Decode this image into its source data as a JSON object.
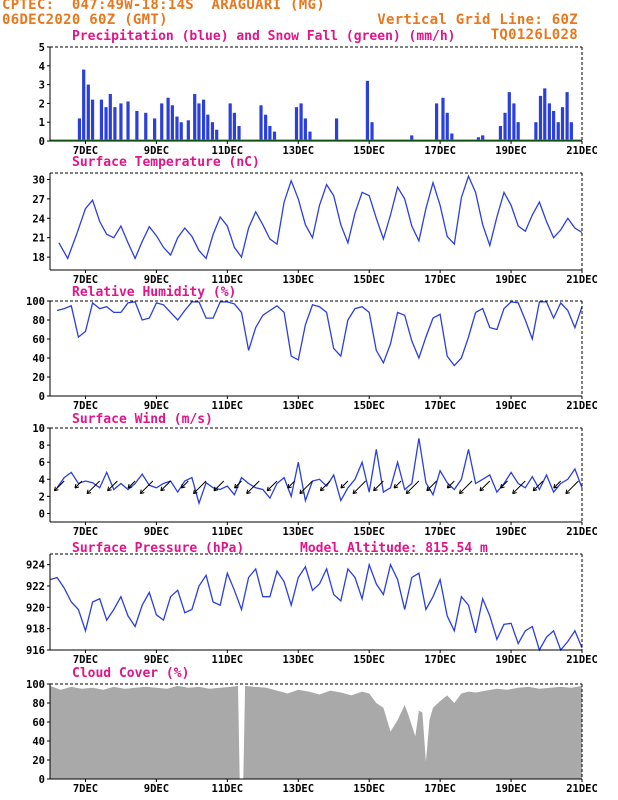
{
  "header": {
    "line1_left": "CPTEC:  047:49W-18:14S  ARAGUARI (MG)",
    "line2_left": "06DEC2020 60Z (GMT)",
    "line2_right": "Vertical Grid Line: 60Z",
    "line3_right": "TQ0126L028"
  },
  "colors": {
    "header": "#e8781e",
    "title": "#e0158a",
    "series": "#2b3fdb",
    "snow": "#1f9e1f",
    "wind_arrow": "#000000",
    "cloud": "#a9a9a9"
  },
  "x_tick_labels": [
    "7DEC",
    "9DEC",
    "11DEC",
    "13DEC",
    "15DEC",
    "17DEC",
    "19DEC",
    "21DEC"
  ],
  "chart_data": [
    {
      "id": "precip",
      "type": "bar",
      "title": "Precipitation (blue) and Snow Fall (green) (mm/h)",
      "ylim": [
        0,
        5
      ],
      "yticks": [
        0,
        1,
        2,
        3,
        4,
        5
      ],
      "series": [
        {
          "name": "Precipitation",
          "x": [
            6.83,
            6.95,
            7.08,
            7.2,
            7.45,
            7.58,
            7.7,
            7.83,
            8.0,
            8.2,
            8.45,
            8.7,
            8.95,
            9.15,
            9.33,
            9.45,
            9.58,
            9.7,
            9.9,
            10.08,
            10.2,
            10.33,
            10.45,
            10.58,
            10.7,
            11.08,
            11.2,
            11.33,
            11.95,
            12.08,
            12.2,
            12.33,
            12.95,
            13.08,
            13.2,
            13.33,
            14.08,
            14.95,
            15.08,
            16.2,
            16.9,
            17.08,
            17.2,
            17.33,
            18.08,
            18.2,
            18.7,
            18.83,
            18.95,
            19.08,
            19.2,
            19.7,
            19.83,
            19.95,
            20.08,
            20.2,
            20.33,
            20.45,
            20.58,
            20.7
          ],
          "values": [
            1.2,
            3.8,
            3.0,
            2.2,
            2.2,
            1.8,
            2.5,
            1.8,
            2.0,
            2.1,
            1.6,
            1.5,
            1.2,
            2.0,
            2.3,
            1.9,
            1.3,
            1.0,
            1.1,
            2.5,
            2.0,
            2.2,
            1.4,
            1.0,
            0.6,
            2.0,
            1.5,
            0.8,
            1.9,
            1.4,
            0.8,
            0.5,
            1.8,
            2.0,
            1.2,
            0.5,
            1.2,
            3.2,
            1.0,
            0.3,
            2.0,
            2.3,
            1.5,
            0.4,
            0.2,
            0.3,
            0.8,
            1.5,
            2.6,
            2.0,
            1.0,
            1.0,
            2.4,
            2.8,
            2.0,
            1.6,
            1.0,
            1.8,
            2.6,
            1.0
          ]
        },
        {
          "name": "Snow Fall",
          "x": [],
          "values": []
        }
      ]
    },
    {
      "id": "temp",
      "type": "line",
      "title": "Surface Temperature (nC)",
      "ylim": [
        16,
        31
      ],
      "yticks": [
        18,
        21,
        24,
        27,
        30
      ],
      "x": [
        6.25,
        6.5,
        6.75,
        7.0,
        7.2,
        7.4,
        7.6,
        7.8,
        8.0,
        8.2,
        8.4,
        8.6,
        8.8,
        9.0,
        9.2,
        9.4,
        9.6,
        9.8,
        10.0,
        10.2,
        10.4,
        10.6,
        10.8,
        11.0,
        11.2,
        11.4,
        11.6,
        11.8,
        12.0,
        12.2,
        12.4,
        12.6,
        12.8,
        13.0,
        13.2,
        13.4,
        13.6,
        13.8,
        14.0,
        14.2,
        14.4,
        14.6,
        14.8,
        15.0,
        15.2,
        15.4,
        15.6,
        15.8,
        16.0,
        16.2,
        16.4,
        16.6,
        16.8,
        17.0,
        17.2,
        17.4,
        17.6,
        17.8,
        18.0,
        18.2,
        18.4,
        18.6,
        18.8,
        19.0,
        19.2,
        19.4,
        19.6,
        19.8,
        20.0,
        20.2,
        20.4,
        20.6,
        20.8,
        21.0
      ],
      "values": [
        20.2,
        17.8,
        21.5,
        25.5,
        26.8,
        23.5,
        21.5,
        21.0,
        22.8,
        20.2,
        17.8,
        20.4,
        22.7,
        21.3,
        19.5,
        18.3,
        21.0,
        22.5,
        21.2,
        19.0,
        17.8,
        21.5,
        24.2,
        22.8,
        19.5,
        18.0,
        22.5,
        25.0,
        23.0,
        20.8,
        20.0,
        26.5,
        29.8,
        27.0,
        23.0,
        21.0,
        26.0,
        29.2,
        27.5,
        23.0,
        20.2,
        24.8,
        28.0,
        27.5,
        24.0,
        20.8,
        24.5,
        28.8,
        27.0,
        22.8,
        20.5,
        25.5,
        29.5,
        26.0,
        21.2,
        20.0,
        27.2,
        30.5,
        28.0,
        23.0,
        19.8,
        24.2,
        28.0,
        26.0,
        22.8,
        22.0,
        24.5,
        26.5,
        23.5,
        21.0,
        22.2,
        24.0,
        22.5,
        21.8
      ]
    },
    {
      "id": "rh",
      "type": "line",
      "title": "Relative Humidity (%)",
      "ylim": [
        0,
        100
      ],
      "yticks": [
        0,
        20,
        40,
        60,
        80,
        100
      ],
      "x": [
        6.2,
        6.4,
        6.6,
        6.8,
        7.0,
        7.2,
        7.4,
        7.6,
        7.8,
        8.0,
        8.2,
        8.4,
        8.6,
        8.8,
        9.0,
        9.2,
        9.4,
        9.6,
        9.8,
        10.0,
        10.2,
        10.4,
        10.6,
        10.8,
        11.0,
        11.2,
        11.4,
        11.6,
        11.8,
        12.0,
        12.2,
        12.4,
        12.6,
        12.8,
        13.0,
        13.2,
        13.4,
        13.6,
        13.8,
        14.0,
        14.2,
        14.4,
        14.6,
        14.8,
        15.0,
        15.2,
        15.4,
        15.6,
        15.8,
        16.0,
        16.2,
        16.4,
        16.6,
        16.8,
        17.0,
        17.2,
        17.4,
        17.6,
        17.8,
        18.0,
        18.2,
        18.4,
        18.6,
        18.8,
        19.0,
        19.2,
        19.4,
        19.6,
        19.8,
        20.0,
        20.2,
        20.4,
        20.6,
        20.8,
        21.0
      ],
      "values": [
        90,
        92,
        95,
        62,
        68,
        98,
        92,
        94,
        88,
        88,
        98,
        99,
        80,
        82,
        98,
        96,
        88,
        80,
        90,
        99,
        99,
        82,
        82,
        99,
        99,
        97,
        88,
        48,
        72,
        85,
        90,
        95,
        88,
        42,
        38,
        75,
        96,
        94,
        88,
        50,
        42,
        80,
        92,
        94,
        88,
        48,
        35,
        55,
        88,
        85,
        58,
        40,
        62,
        82,
        86,
        42,
        32,
        40,
        62,
        88,
        92,
        72,
        70,
        92,
        99,
        98,
        80,
        60,
        99,
        99,
        82,
        98,
        90,
        72,
        94
      ]
    },
    {
      "id": "wind",
      "type": "line",
      "title": "Surface Wind (m/s)",
      "ylim": [
        -1,
        10
      ],
      "yticks": [
        0,
        2,
        4,
        6,
        8,
        10
      ],
      "x": [
        6.2,
        6.4,
        6.6,
        6.8,
        7.0,
        7.2,
        7.4,
        7.6,
        7.8,
        8.0,
        8.2,
        8.4,
        8.6,
        8.8,
        9.0,
        9.2,
        9.4,
        9.6,
        9.8,
        10.0,
        10.2,
        10.4,
        10.6,
        10.8,
        11.0,
        11.2,
        11.4,
        11.6,
        11.8,
        12.0,
        12.2,
        12.4,
        12.6,
        12.8,
        13.0,
        13.2,
        13.4,
        13.6,
        13.8,
        14.0,
        14.2,
        14.4,
        14.6,
        14.8,
        15.0,
        15.2,
        15.4,
        15.6,
        15.8,
        16.0,
        16.2,
        16.4,
        16.6,
        16.8,
        17.0,
        17.2,
        17.4,
        17.6,
        17.8,
        18.0,
        18.2,
        18.4,
        18.6,
        18.8,
        19.0,
        19.2,
        19.4,
        19.6,
        19.8,
        20.0,
        20.2,
        20.4,
        20.6,
        20.8,
        21.0
      ],
      "values": [
        3.0,
        4.2,
        4.8,
        3.5,
        3.8,
        3.6,
        3.0,
        4.8,
        2.8,
        3.5,
        2.8,
        3.5,
        4.6,
        3.3,
        3.0,
        3.5,
        3.8,
        2.5,
        3.8,
        4.2,
        1.2,
        3.6,
        3.0,
        2.8,
        3.2,
        2.2,
        4.2,
        3.5,
        3.0,
        2.8,
        1.8,
        3.5,
        4.2,
        2.0,
        6.0,
        1.5,
        3.8,
        4.0,
        3.2,
        4.5,
        1.5,
        3.0,
        4.0,
        6.0,
        2.5,
        7.5,
        2.5,
        3.0,
        6.0,
        2.8,
        3.5,
        8.8,
        3.6,
        2.2,
        5.0,
        3.6,
        2.8,
        4.0,
        7.5,
        3.5,
        4.0,
        4.5,
        2.5,
        3.5,
        4.8,
        3.5,
        3.0,
        4.3,
        2.8,
        4.5,
        2.5,
        3.5,
        4.0,
        5.2,
        3.0
      ]
    },
    {
      "id": "pres",
      "type": "line",
      "title": "Surface Pressure (hPa)",
      "subtitle": "Model Altitude: 815.54 m",
      "ylim": [
        916,
        925
      ],
      "yticks": [
        916,
        918,
        920,
        922,
        924
      ],
      "x": [
        6.0,
        6.2,
        6.4,
        6.6,
        6.8,
        7.0,
        7.2,
        7.4,
        7.6,
        7.8,
        8.0,
        8.2,
        8.4,
        8.6,
        8.8,
        9.0,
        9.2,
        9.4,
        9.6,
        9.8,
        10.0,
        10.2,
        10.4,
        10.6,
        10.8,
        11.0,
        11.2,
        11.4,
        11.6,
        11.8,
        12.0,
        12.2,
        12.4,
        12.6,
        12.8,
        13.0,
        13.2,
        13.4,
        13.6,
        13.8,
        14.0,
        14.2,
        14.4,
        14.6,
        14.8,
        15.0,
        15.2,
        15.4,
        15.6,
        15.8,
        16.0,
        16.2,
        16.4,
        16.6,
        16.8,
        17.0,
        17.2,
        17.4,
        17.6,
        17.8,
        18.0,
        18.2,
        18.4,
        18.6,
        18.8,
        19.0,
        19.2,
        19.4,
        19.6,
        19.8,
        20.0,
        20.2,
        20.4,
        20.6,
        20.8,
        21.0
      ],
      "values": [
        922.6,
        922.8,
        921.8,
        920.5,
        919.8,
        917.8,
        920.5,
        920.8,
        918.8,
        919.8,
        921.0,
        919.2,
        918.2,
        920.2,
        921.4,
        919.3,
        918.8,
        921.0,
        921.6,
        919.5,
        919.8,
        922.0,
        923.0,
        920.5,
        920.2,
        923.2,
        921.6,
        919.8,
        922.8,
        923.6,
        921.0,
        921.0,
        923.4,
        922.4,
        920.2,
        922.8,
        923.8,
        921.6,
        922.2,
        923.6,
        921.2,
        920.6,
        923.6,
        922.8,
        920.8,
        924.0,
        922.2,
        921.2,
        924.0,
        922.6,
        919.8,
        922.8,
        923.2,
        919.8,
        921.0,
        922.6,
        919.2,
        917.8,
        921.0,
        920.2,
        917.6,
        920.8,
        919.2,
        917.0,
        918.4,
        918.5,
        916.6,
        917.8,
        918.2,
        915.8,
        917.2,
        917.8,
        915.8,
        916.8,
        917.8,
        916.2
      ]
    },
    {
      "id": "cloud",
      "type": "area",
      "title": "Cloud Cover (%)",
      "ylim": [
        0,
        100
      ],
      "yticks": [
        0,
        20,
        40,
        60,
        80,
        100
      ],
      "x": [
        6.0,
        6.3,
        6.6,
        6.9,
        7.2,
        7.5,
        7.8,
        8.1,
        8.4,
        8.7,
        9.0,
        9.3,
        9.6,
        9.9,
        10.2,
        10.5,
        10.8,
        11.1,
        11.3,
        11.35,
        11.45,
        11.5,
        11.8,
        12.1,
        12.4,
        12.7,
        13.0,
        13.3,
        13.6,
        13.9,
        14.2,
        14.5,
        14.8,
        15.0,
        15.2,
        15.4,
        15.6,
        15.8,
        16.0,
        16.1,
        16.3,
        16.4,
        16.5,
        16.6,
        16.7,
        16.8,
        17.0,
        17.2,
        17.4,
        17.6,
        17.8,
        18.0,
        18.3,
        18.6,
        18.9,
        19.2,
        19.5,
        19.8,
        20.1,
        20.4,
        20.7,
        21.0
      ],
      "values": [
        98,
        94,
        97,
        95,
        96,
        94,
        97,
        95,
        96,
        97,
        96,
        95,
        98,
        96,
        97,
        95,
        96,
        97,
        98,
        0,
        0,
        98,
        97,
        96,
        93,
        90,
        94,
        92,
        89,
        93,
        91,
        88,
        92,
        90,
        80,
        75,
        50,
        62,
        78,
        68,
        45,
        72,
        70,
        18,
        62,
        75,
        82,
        88,
        80,
        90,
        92,
        91,
        93,
        95,
        94,
        96,
        97,
        95,
        96,
        97,
        96,
        98
      ]
    }
  ]
}
